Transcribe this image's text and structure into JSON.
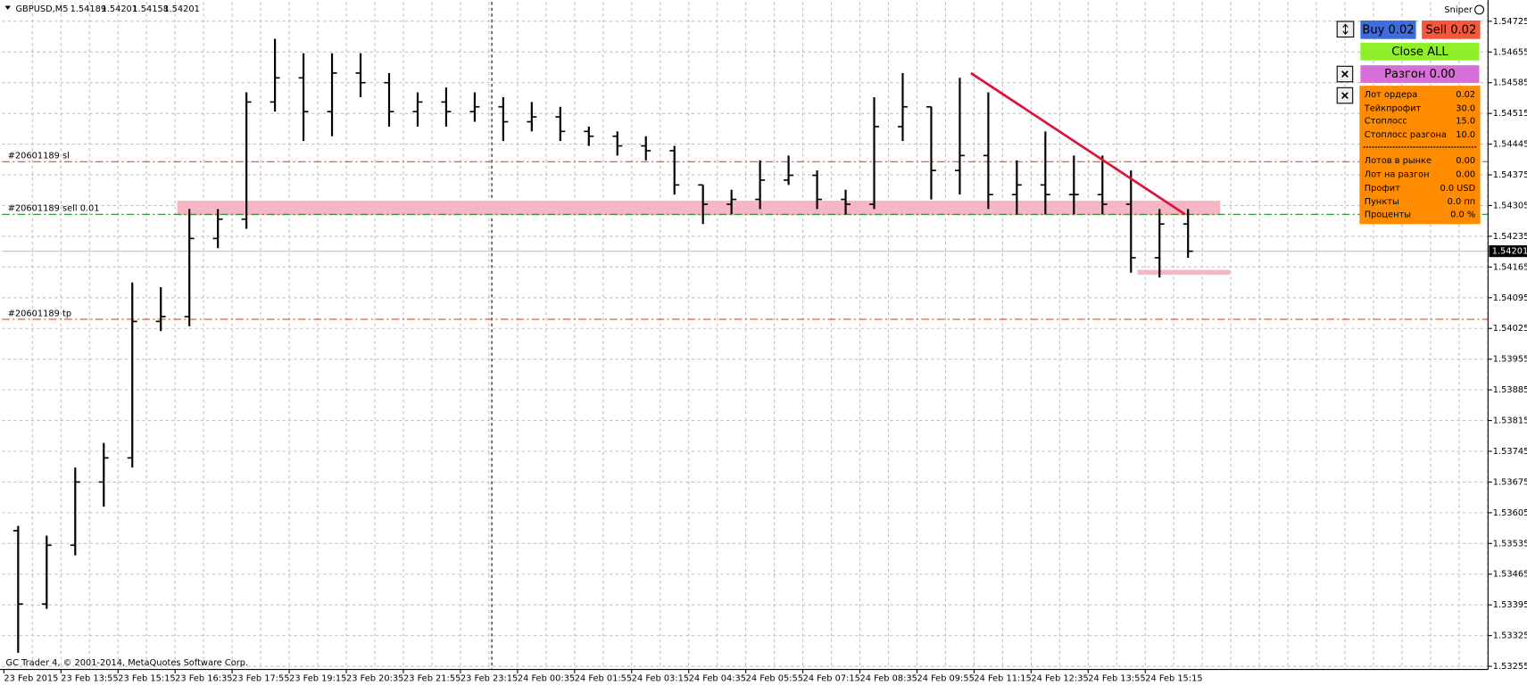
{
  "chart_data": {
    "type": "ohlc",
    "title": "GBPUSD,M5",
    "quote": [
      1.54189,
      1.54201,
      1.54158,
      1.54201
    ],
    "categories": [
      "23 Feb 2015",
      null,
      "23 Feb 13:55",
      null,
      "23 Feb 15:15",
      null,
      "23 Feb 16:35",
      null,
      "23 Feb 17:55",
      null,
      "23 Feb 19:15",
      null,
      "23 Feb 20:35",
      null,
      "23 Feb 21:55",
      null,
      "23 Feb 23:15",
      null,
      "24 Feb 00:35",
      null,
      "24 Feb 01:55",
      null,
      "24 Feb 03:15",
      null,
      "24 Feb 04:35",
      null,
      "24 Feb 05:55",
      null,
      "24 Feb 07:15",
      null,
      "24 Feb 08:35",
      null,
      "24 Feb 09:55",
      null,
      "24 Feb 11:15",
      null,
      "24 Feb 12:35",
      null,
      "24 Feb 13:55",
      null,
      "24 Feb 15:15",
      null
    ],
    "open": [
      1.53564,
      1.53397,
      1.53531,
      1.53675,
      1.5373,
      1.54041,
      1.54052,
      1.5423,
      1.54274,
      1.54541,
      1.54596,
      1.54519,
      1.54607,
      1.54585,
      1.54519,
      1.54541,
      1.54519,
      1.5453,
      1.54496,
      1.54507,
      1.54474,
      1.54463,
      1.54441,
      1.5443,
      1.54352,
      1.54308,
      1.54319,
      1.54363,
      1.54374,
      1.54319,
      1.54308,
      1.54485,
      1.5453,
      1.54385,
      1.54419,
      1.5433,
      1.54352,
      1.5433,
      1.5433,
      1.54308,
      1.54186,
      1.54263
    ],
    "high": [
      1.53575,
      1.53553,
      1.53708,
      1.53764,
      1.5413,
      1.54119,
      1.54297,
      1.54297,
      1.54563,
      1.54685,
      1.54652,
      1.54652,
      1.54652,
      1.54607,
      1.54563,
      1.54574,
      1.54563,
      1.54552,
      1.54541,
      1.5453,
      1.54485,
      1.54474,
      1.54463,
      1.54441,
      1.54352,
      1.54341,
      1.54408,
      1.54419,
      1.54385,
      1.54341,
      1.54552,
      1.54607,
      1.5453,
      1.54596,
      1.54563,
      1.54408,
      1.54474,
      1.54419,
      1.54419,
      1.54385,
      1.54297,
      1.54297
    ],
    "low": [
      1.53286,
      1.53386,
      1.53508,
      1.53619,
      1.53708,
      1.54019,
      1.5403,
      1.54208,
      1.54252,
      1.54519,
      1.54452,
      1.54463,
      1.54552,
      1.54485,
      1.54485,
      1.54485,
      1.54496,
      1.54452,
      1.54474,
      1.54452,
      1.54441,
      1.54419,
      1.54408,
      1.5433,
      1.54263,
      1.54285,
      1.54297,
      1.54352,
      1.54297,
      1.54285,
      1.54297,
      1.54452,
      1.54319,
      1.5433,
      1.54297,
      1.54285,
      1.54285,
      1.54285,
      1.54285,
      1.54152,
      1.54141,
      1.54186
    ],
    "close": [
      1.53397,
      1.53531,
      1.53675,
      1.5373,
      1.54041,
      1.54052,
      1.5423,
      1.54274,
      1.54541,
      1.54596,
      1.54519,
      1.54607,
      1.54585,
      1.54519,
      1.54541,
      1.54519,
      1.5453,
      1.54496,
      1.54507,
      1.54474,
      1.54463,
      1.54441,
      1.5443,
      1.54352,
      1.54308,
      1.54319,
      1.54363,
      1.54374,
      1.54319,
      1.54308,
      1.54485,
      1.5453,
      1.54385,
      1.54419,
      1.5433,
      1.54352,
      1.5433,
      1.5433,
      1.54308,
      1.54186,
      1.54263,
      1.54201
    ],
    "color": "#000000",
    "grid": true,
    "ylim": [
      1.53248,
      1.54769
    ],
    "yticks": [
      1.54725,
      1.54655,
      1.54585,
      1.54515,
      1.54445,
      1.54375,
      1.54305,
      1.54235,
      1.54165,
      1.54095,
      1.54025,
      1.53955,
      1.53885,
      1.53815,
      1.53745,
      1.53675,
      1.53605,
      1.53535,
      1.53465,
      1.53395,
      1.53325,
      1.53255
    ],
    "current_price": 1.54201,
    "levels": [
      {
        "label": "#20601189 sl",
        "value": 1.54405,
        "color": "#ff4500"
      },
      {
        "label": "#20601189 sell 0.01",
        "value": 1.54285,
        "color": "#228b22"
      },
      {
        "label": "#20601189 tp",
        "value": 1.54046,
        "color": "#ff4500"
      }
    ]
  },
  "indicator": {
    "name": "Sniper",
    "buy": "Buy 0.02",
    "sell": "Sell 0.02",
    "close_all": "Close ALL",
    "razgon": "Разгон 0.00",
    "rows": [
      [
        "Лот ордера",
        "0.02"
      ],
      [
        "Тейкпрофит",
        "30.0"
      ],
      [
        "Стоплосс",
        "15.0"
      ],
      [
        "Стоплосс разгона",
        "10.0"
      ],
      [
        "Лотов в рынке",
        "0.00"
      ],
      [
        "Лот на разгон",
        "0.00"
      ],
      [
        "Профит",
        "0.0 USD"
      ],
      [
        "Пункты",
        "0.0 пп"
      ],
      [
        "Проценты",
        "0.0 %"
      ]
    ]
  },
  "footer": "GC Trader 4, © 2001-2014, MetaQuotes Software Corp."
}
